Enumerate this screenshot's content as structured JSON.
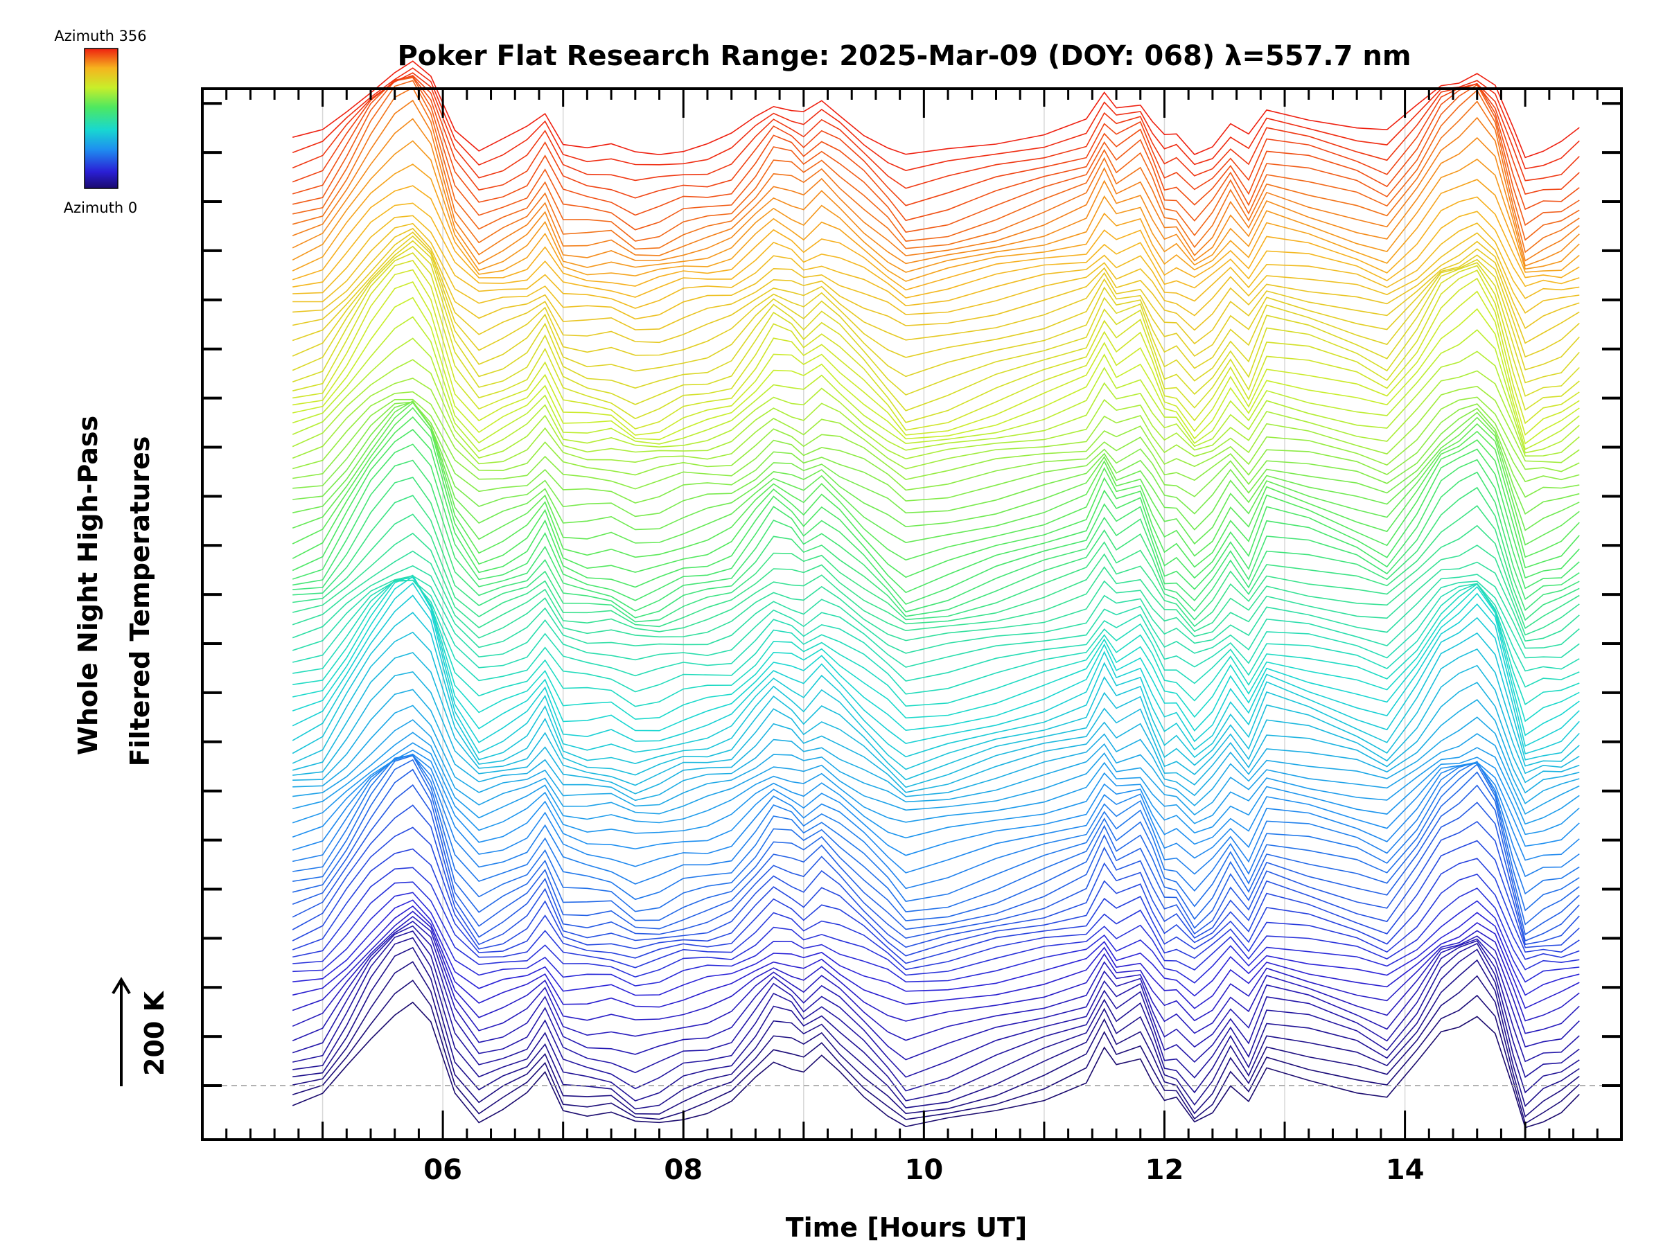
{
  "chart_data": {
    "type": "line",
    "title": "Poker Flat Research Range: 2025-Mar-09 (DOY: 068) λ=557.7 nm",
    "xlabel": "Time [Hours UT]",
    "ylabel_line1": "Whole Night High-Pass",
    "ylabel_line2": "Filtered Temperatures",
    "xlim": [
      4.0,
      15.8
    ],
    "x_ticks": [
      6,
      8,
      10,
      12,
      14
    ],
    "x_tick_labels": [
      "06",
      "08",
      "10",
      "12",
      "14"
    ],
    "x_gridlines": [
      5,
      6,
      7,
      8,
      9,
      10,
      11,
      12,
      13,
      14
    ],
    "scale_bar_label": "200 K",
    "colorbar": {
      "top_label": "Azimuth 356",
      "bottom_label": "Azimuth 0",
      "colormap": "rainbow"
    },
    "series_count": 90,
    "azimuth_step_deg": 4,
    "trace_offset_K": 22,
    "baseline_K": 0,
    "y_offset_range_K": [
      -110,
      2030
    ],
    "base_curve": {
      "time": [
        4.75,
        5.0,
        5.2,
        5.4,
        5.6,
        5.75,
        5.9,
        6.1,
        6.3,
        6.5,
        6.7,
        6.85,
        7.0,
        7.2,
        7.4,
        7.6,
        7.8,
        8.0,
        8.2,
        8.4,
        8.6,
        8.75,
        8.9,
        9.0,
        9.15,
        9.3,
        9.5,
        9.7,
        9.85,
        10.2,
        10.6,
        11.0,
        11.35,
        11.5,
        11.6,
        11.8,
        11.9,
        12.0,
        12.1,
        12.25,
        12.4,
        12.55,
        12.7,
        12.85,
        13.2,
        13.6,
        13.85,
        14.1,
        14.3,
        14.45,
        14.6,
        14.75,
        14.9,
        15.0,
        15.15,
        15.3,
        15.45
      ],
      "temperature_K": [
        -55,
        -35,
        40,
        120,
        180,
        200,
        150,
        -10,
        -75,
        -55,
        -30,
        20,
        -60,
        -70,
        -70,
        -95,
        -85,
        -65,
        -55,
        -40,
        15,
        60,
        45,
        25,
        55,
        25,
        -20,
        -65,
        -100,
        -80,
        -50,
        -20,
        10,
        80,
        40,
        65,
        10,
        -45,
        -40,
        -85,
        -50,
        10,
        -40,
        40,
        20,
        -10,
        -35,
        40,
        120,
        145,
        170,
        120,
        -10,
        -90,
        -70,
        -60,
        -30
      ]
    },
    "colors": {
      "dashed_baseline": "#999999",
      "gridline": "#d8d8d8",
      "frame": "#000000"
    }
  }
}
